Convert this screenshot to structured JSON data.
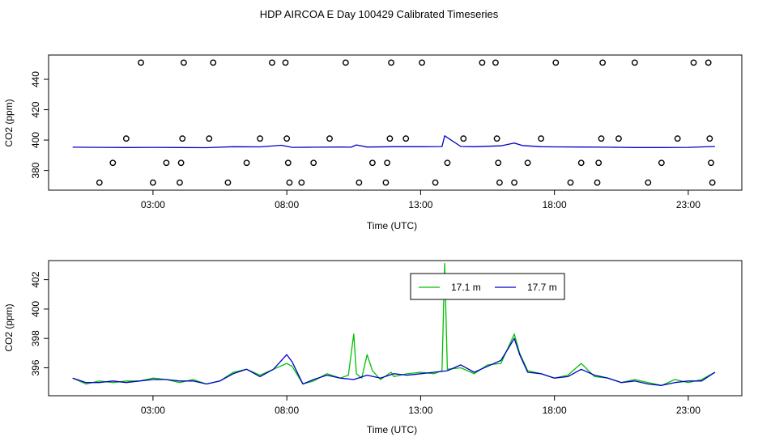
{
  "title": "HDP AIRCOA E  Day 100429  Calibrated Timeseries",
  "colors": {
    "series_1": "#00c000",
    "series_2": "#0000cc",
    "axes": "#000000",
    "circles": "#000000"
  },
  "chart_data": [
    {
      "type": "scatter",
      "xlabel": "Time (UTC)",
      "ylabel": "CO2 (ppm)",
      "x_ticks": [
        "03:00",
        "08:00",
        "13:00",
        "18:00",
        "23:00"
      ],
      "x_tick_hours": [
        3,
        8,
        13,
        18,
        23
      ],
      "y_ticks": [
        380,
        400,
        420,
        440
      ],
      "xlim": [
        -0.9,
        25.0
      ],
      "ylim": [
        367,
        456
      ],
      "grid": false,
      "points": [
        {
          "x": 1.0,
          "y": 372
        },
        {
          "x": 1.5,
          "y": 385
        },
        {
          "x": 2.0,
          "y": 401
        },
        {
          "x": 2.55,
          "y": 451
        },
        {
          "x": 3.0,
          "y": 372
        },
        {
          "x": 3.5,
          "y": 385
        },
        {
          "x": 4.0,
          "y": 372
        },
        {
          "x": 4.05,
          "y": 385
        },
        {
          "x": 4.1,
          "y": 401
        },
        {
          "x": 4.15,
          "y": 451
        },
        {
          "x": 5.1,
          "y": 401
        },
        {
          "x": 5.25,
          "y": 451
        },
        {
          "x": 5.8,
          "y": 372
        },
        {
          "x": 6.5,
          "y": 385
        },
        {
          "x": 7.0,
          "y": 401
        },
        {
          "x": 7.45,
          "y": 451
        },
        {
          "x": 7.95,
          "y": 451
        },
        {
          "x": 8.0,
          "y": 401
        },
        {
          "x": 8.05,
          "y": 385
        },
        {
          "x": 8.1,
          "y": 372
        },
        {
          "x": 8.55,
          "y": 372
        },
        {
          "x": 9.0,
          "y": 385
        },
        {
          "x": 9.6,
          "y": 401
        },
        {
          "x": 10.2,
          "y": 451
        },
        {
          "x": 10.7,
          "y": 372
        },
        {
          "x": 11.2,
          "y": 385
        },
        {
          "x": 11.7,
          "y": 372
        },
        {
          "x": 11.75,
          "y": 385
        },
        {
          "x": 11.85,
          "y": 401
        },
        {
          "x": 11.9,
          "y": 451
        },
        {
          "x": 12.45,
          "y": 401
        },
        {
          "x": 13.05,
          "y": 451
        },
        {
          "x": 13.55,
          "y": 372
        },
        {
          "x": 14.0,
          "y": 385
        },
        {
          "x": 14.6,
          "y": 401
        },
        {
          "x": 15.3,
          "y": 451
        },
        {
          "x": 15.8,
          "y": 451
        },
        {
          "x": 15.85,
          "y": 401
        },
        {
          "x": 15.9,
          "y": 385
        },
        {
          "x": 15.95,
          "y": 372
        },
        {
          "x": 16.5,
          "y": 372
        },
        {
          "x": 17.0,
          "y": 385
        },
        {
          "x": 17.5,
          "y": 401
        },
        {
          "x": 18.05,
          "y": 451
        },
        {
          "x": 18.6,
          "y": 372
        },
        {
          "x": 19.0,
          "y": 385
        },
        {
          "x": 19.6,
          "y": 372
        },
        {
          "x": 19.65,
          "y": 385
        },
        {
          "x": 19.75,
          "y": 401
        },
        {
          "x": 19.8,
          "y": 451
        },
        {
          "x": 20.4,
          "y": 401
        },
        {
          "x": 21.0,
          "y": 451
        },
        {
          "x": 21.5,
          "y": 372
        },
        {
          "x": 22.0,
          "y": 385
        },
        {
          "x": 22.6,
          "y": 401
        },
        {
          "x": 23.2,
          "y": 451
        },
        {
          "x": 23.75,
          "y": 451
        },
        {
          "x": 23.8,
          "y": 401
        },
        {
          "x": 23.85,
          "y": 385
        },
        {
          "x": 23.9,
          "y": 372
        }
      ],
      "series": [
        {
          "x": [
            0.0,
            1.0,
            2.0,
            3.0,
            4.0,
            5.0,
            6.0,
            7.0,
            7.8,
            8.2,
            9.0,
            10.0,
            10.4,
            10.6,
            11.0,
            12.0,
            13.0,
            13.8,
            13.9,
            14.5,
            15.0,
            16.0,
            16.5,
            16.8,
            17.5,
            18.0,
            19.0,
            20.0,
            21.0,
            22.0,
            23.0,
            24.0
          ],
          "y": [
            395.3,
            395.2,
            395.1,
            395.2,
            395.1,
            395.0,
            395.6,
            395.5,
            396.6,
            395.2,
            395.3,
            395.4,
            395.3,
            396.8,
            395.4,
            395.6,
            395.6,
            395.7,
            402.8,
            395.8,
            395.6,
            396.2,
            398.0,
            396.4,
            395.6,
            395.5,
            395.4,
            395.3,
            395.1,
            395.1,
            395.2,
            395.8
          ],
          "color": "#0000cc"
        }
      ]
    },
    {
      "type": "line",
      "xlabel": "Time (UTC)",
      "ylabel": "CO2 (ppm)",
      "x_ticks": [
        "03:00",
        "08:00",
        "13:00",
        "18:00",
        "23:00"
      ],
      "x_tick_hours": [
        3,
        8,
        13,
        18,
        23
      ],
      "y_ticks": [
        396,
        398,
        400,
        402
      ],
      "xlim": [
        -0.9,
        25.0
      ],
      "ylim": [
        394.1,
        403.3
      ],
      "grid": false,
      "legend_position": "top-right",
      "series": [
        {
          "name": "17.1 m",
          "color": "#00c000",
          "x": [
            0.0,
            0.5,
            1.0,
            1.5,
            2.0,
            2.5,
            3.0,
            3.5,
            4.0,
            4.5,
            5.0,
            5.5,
            6.0,
            6.5,
            7.0,
            7.5,
            8.0,
            8.2,
            8.6,
            9.0,
            9.5,
            10.0,
            10.3,
            10.5,
            10.6,
            10.8,
            11.0,
            11.2,
            11.5,
            11.9,
            12.0,
            12.5,
            13.0,
            13.5,
            13.8,
            13.9,
            14.0,
            14.5,
            15.0,
            15.5,
            16.0,
            16.3,
            16.5,
            16.7,
            17.0,
            17.5,
            18.0,
            18.5,
            19.0,
            19.5,
            20.0,
            20.5,
            21.0,
            21.5,
            22.0,
            22.5,
            23.0,
            23.5,
            24.0
          ],
          "y": [
            395.3,
            394.9,
            395.1,
            395.0,
            395.1,
            395.1,
            395.3,
            395.2,
            395.0,
            395.2,
            394.9,
            395.1,
            395.7,
            395.9,
            395.5,
            395.9,
            396.3,
            396.1,
            394.9,
            395.1,
            395.6,
            395.3,
            395.5,
            398.3,
            395.6,
            395.3,
            396.9,
            395.8,
            395.2,
            395.7,
            395.4,
            395.6,
            395.7,
            395.6,
            395.8,
            403.1,
            395.9,
            396.0,
            395.6,
            396.2,
            396.3,
            397.5,
            398.3,
            397.0,
            395.8,
            395.6,
            395.3,
            395.5,
            396.3,
            395.4,
            395.3,
            395.0,
            395.2,
            395.0,
            394.8,
            395.2,
            395.0,
            395.2,
            395.7
          ]
        },
        {
          "name": "17.7 m",
          "color": "#0000cc",
          "x": [
            0.0,
            0.5,
            1.0,
            1.5,
            2.0,
            2.5,
            3.0,
            3.5,
            4.0,
            4.5,
            5.0,
            5.5,
            6.0,
            6.5,
            7.0,
            7.5,
            8.0,
            8.2,
            8.6,
            9.0,
            9.5,
            10.0,
            10.5,
            11.0,
            11.5,
            12.0,
            12.5,
            13.0,
            13.5,
            14.0,
            14.5,
            15.0,
            15.5,
            16.0,
            16.3,
            16.5,
            16.7,
            17.0,
            17.5,
            18.0,
            18.5,
            19.0,
            19.5,
            20.0,
            20.5,
            21.0,
            21.5,
            22.0,
            22.5,
            23.0,
            23.5,
            24.0
          ],
          "y": [
            395.3,
            395.0,
            395.0,
            395.1,
            395.0,
            395.1,
            395.2,
            395.2,
            395.1,
            395.1,
            394.9,
            395.1,
            395.6,
            395.9,
            395.4,
            395.9,
            396.9,
            396.4,
            394.9,
            395.2,
            395.5,
            395.3,
            395.2,
            395.5,
            395.3,
            395.6,
            395.5,
            395.6,
            395.7,
            395.8,
            396.2,
            395.7,
            396.1,
            396.5,
            397.4,
            398.0,
            396.9,
            395.7,
            395.6,
            395.3,
            395.4,
            395.9,
            395.5,
            395.3,
            395.0,
            395.1,
            394.9,
            394.8,
            395.0,
            395.1,
            395.1,
            395.7
          ]
        }
      ]
    }
  ]
}
